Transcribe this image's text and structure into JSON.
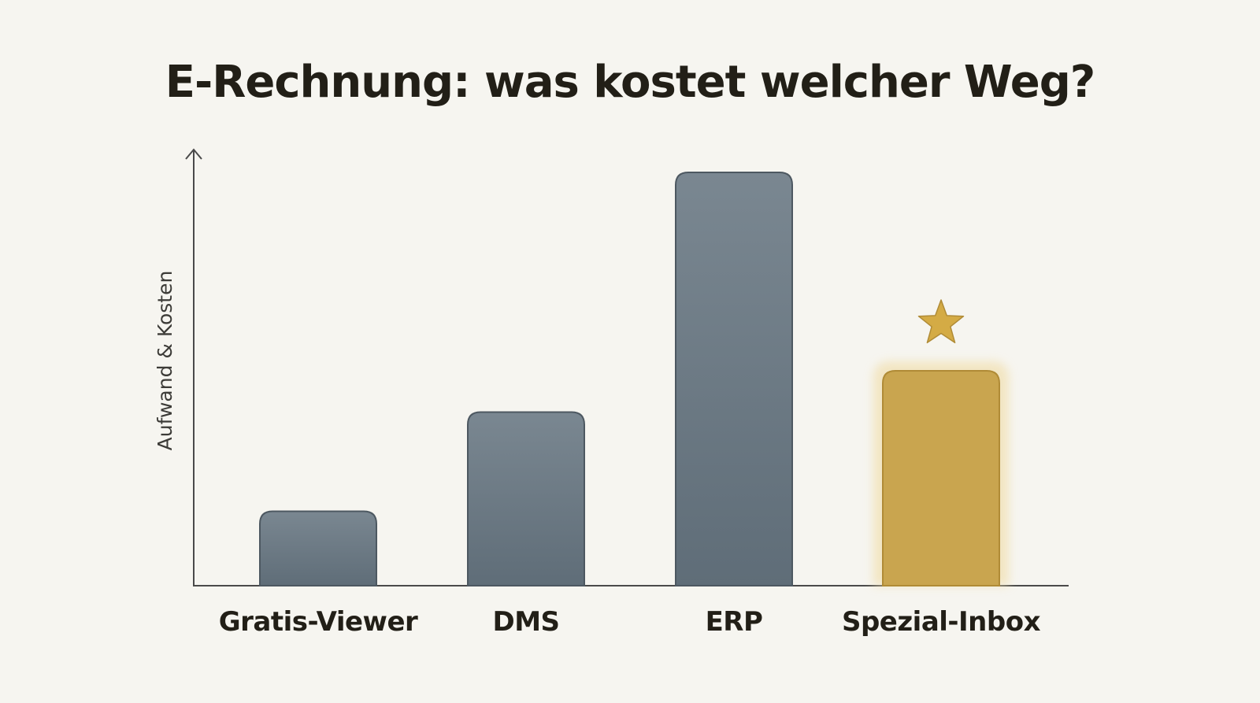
{
  "chart_data": {
    "type": "bar",
    "title": "E-Rechnung: was kostet welcher Weg?",
    "xlabel": "",
    "ylabel": "Aufwand & Kosten",
    "categories": [
      "Gratis-Viewer",
      "DMS",
      "ERP",
      "Spezial-Inbox"
    ],
    "values": [
      18,
      42,
      100,
      52
    ],
    "ylim": [
      0,
      105
    ],
    "grid": false,
    "legend": "none",
    "highlight": {
      "category": "Spezial-Inbox",
      "marker": "star-icon",
      "color": "#c9a54f"
    },
    "colors": {
      "bar_top": "#7a8791",
      "bar_bottom": "#5f6d78",
      "bar_stroke": "#4d5861",
      "highlight_fill": "#c9a54f",
      "highlight_stroke": "#b08b36",
      "highlight_glow": "#f1dfae",
      "star": "#d4ab45",
      "axis": "#4a4a4a",
      "background": "#f6f5f0"
    }
  }
}
